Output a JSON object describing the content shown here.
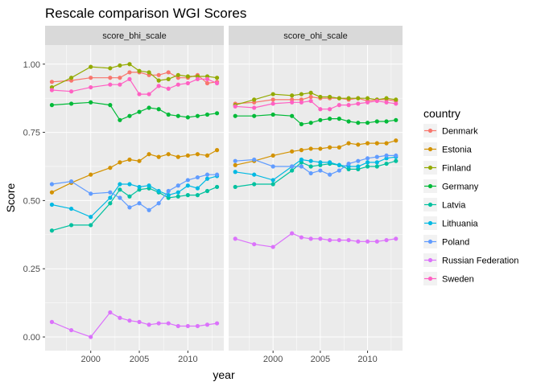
{
  "chart_data": {
    "type": "line",
    "title": "Rescale comparison WGI Scores",
    "xlabel": "year",
    "ylabel": "Score",
    "xlim": [
      1995.3,
      2013.7
    ],
    "ylim": [
      -0.05,
      1.07
    ],
    "x_ticks": [
      2000,
      2005,
      2010
    ],
    "y_ticks": [
      0.0,
      0.25,
      0.5,
      0.75,
      1.0
    ],
    "y_tick_labels": [
      "0.00",
      "0.25",
      "0.50",
      "0.75",
      "1.00"
    ],
    "grid": true,
    "legend": {
      "title": "country",
      "position": "right"
    },
    "x": [
      1996,
      1998,
      2000,
      2002,
      2003,
      2004,
      2005,
      2006,
      2007,
      2008,
      2009,
      2010,
      2011,
      2012,
      2013
    ],
    "panels": [
      {
        "name": "score_bhi_scale",
        "series": [
          {
            "name": "Denmark",
            "color": "#F8766D",
            "values": [
              0.935,
              0.94,
              0.95,
              0.95,
              0.95,
              0.97,
              0.97,
              0.96,
              0.96,
              0.97,
              0.95,
              0.95,
              0.96,
              0.93,
              0.935
            ]
          },
          {
            "name": "Estonia",
            "color": "#D39200",
            "values": [
              0.53,
              0.565,
              0.595,
              0.62,
              0.64,
              0.65,
              0.645,
              0.67,
              0.66,
              0.67,
              0.66,
              0.665,
              0.67,
              0.665,
              0.685
            ]
          },
          {
            "name": "Finland",
            "color": "#93AA00",
            "values": [
              0.915,
              0.95,
              0.99,
              0.985,
              0.995,
              1.0,
              0.975,
              0.97,
              0.94,
              0.945,
              0.96,
              0.955,
              0.955,
              0.955,
              0.95
            ]
          },
          {
            "name": "Germany",
            "color": "#00BA38",
            "values": [
              0.85,
              0.855,
              0.86,
              0.85,
              0.795,
              0.81,
              0.825,
              0.84,
              0.835,
              0.815,
              0.81,
              0.805,
              0.81,
              0.815,
              0.82
            ]
          },
          {
            "name": "Latvia",
            "color": "#00C19F",
            "values": [
              0.39,
              0.41,
              0.41,
              0.49,
              0.54,
              0.515,
              0.54,
              0.545,
              0.53,
              0.51,
              0.515,
              0.52,
              0.52,
              0.535,
              0.55
            ]
          },
          {
            "name": "Lithuania",
            "color": "#00B9E3",
            "values": [
              0.485,
              0.47,
              0.44,
              0.51,
              0.56,
              0.56,
              0.55,
              0.555,
              0.535,
              0.52,
              0.53,
              0.555,
              0.545,
              0.58,
              0.59
            ]
          },
          {
            "name": "Poland",
            "color": "#619CFF",
            "values": [
              0.56,
              0.57,
              0.525,
              0.53,
              0.51,
              0.475,
              0.49,
              0.465,
              0.49,
              0.535,
              0.555,
              0.575,
              0.585,
              0.595,
              0.595
            ]
          },
          {
            "name": "Russian Federation",
            "color": "#DB72FB",
            "values": [
              0.055,
              0.025,
              0.0,
              0.09,
              0.07,
              0.06,
              0.055,
              0.045,
              0.05,
              0.05,
              0.04,
              0.04,
              0.04,
              0.045,
              0.05
            ]
          },
          {
            "name": "Sweden",
            "color": "#FF61C3",
            "values": [
              0.905,
              0.9,
              0.915,
              0.925,
              0.925,
              0.945,
              0.89,
              0.89,
              0.92,
              0.91,
              0.925,
              0.93,
              0.945,
              0.945,
              0.93
            ]
          }
        ]
      },
      {
        "name": "score_ohi_scale",
        "series": [
          {
            "name": "Denmark",
            "color": "#F8766D",
            "values": [
              0.855,
              0.86,
              0.87,
              0.87,
              0.87,
              0.88,
              0.875,
              0.875,
              0.875,
              0.87,
              0.875,
              0.865,
              0.87,
              0.87,
              0.865
            ]
          },
          {
            "name": "Estonia",
            "color": "#D39200",
            "values": [
              0.63,
              0.645,
              0.665,
              0.68,
              0.685,
              0.69,
              0.69,
              0.695,
              0.695,
              0.71,
              0.705,
              0.71,
              0.71,
              0.71,
              0.72
            ]
          },
          {
            "name": "Finland",
            "color": "#93AA00",
            "values": [
              0.85,
              0.87,
              0.89,
              0.885,
              0.89,
              0.895,
              0.88,
              0.88,
              0.875,
              0.875,
              0.875,
              0.875,
              0.87,
              0.875,
              0.87
            ]
          },
          {
            "name": "Germany",
            "color": "#00BA38",
            "values": [
              0.81,
              0.81,
              0.815,
              0.81,
              0.78,
              0.785,
              0.795,
              0.8,
              0.8,
              0.79,
              0.785,
              0.785,
              0.79,
              0.79,
              0.795
            ]
          },
          {
            "name": "Latvia",
            "color": "#00C19F",
            "values": [
              0.55,
              0.56,
              0.56,
              0.61,
              0.64,
              0.625,
              0.63,
              0.635,
              0.63,
              0.615,
              0.615,
              0.625,
              0.625,
              0.635,
              0.645
            ]
          },
          {
            "name": "Lithuania",
            "color": "#00B9E3",
            "values": [
              0.605,
              0.595,
              0.575,
              0.625,
              0.65,
              0.645,
              0.64,
              0.64,
              0.63,
              0.625,
              0.625,
              0.64,
              0.64,
              0.655,
              0.66
            ]
          },
          {
            "name": "Poland",
            "color": "#619CFF",
            "values": [
              0.645,
              0.65,
              0.625,
              0.625,
              0.625,
              0.6,
              0.61,
              0.595,
              0.61,
              0.635,
              0.645,
              0.655,
              0.66,
              0.665,
              0.665
            ]
          },
          {
            "name": "Russian Federation",
            "color": "#DB72FB",
            "values": [
              0.36,
              0.34,
              0.33,
              0.38,
              0.365,
              0.36,
              0.36,
              0.355,
              0.355,
              0.355,
              0.35,
              0.35,
              0.35,
              0.355,
              0.36
            ]
          },
          {
            "name": "Sweden",
            "color": "#FF61C3",
            "values": [
              0.845,
              0.84,
              0.855,
              0.86,
              0.86,
              0.865,
              0.835,
              0.835,
              0.85,
              0.85,
              0.855,
              0.86,
              0.865,
              0.86,
              0.855
            ]
          }
        ]
      }
    ]
  }
}
